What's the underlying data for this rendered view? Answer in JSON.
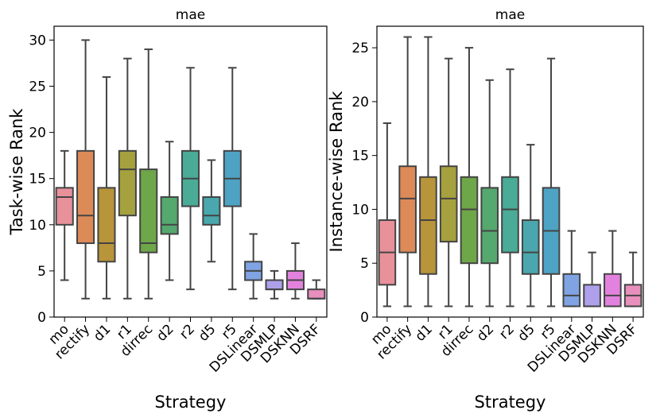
{
  "chart_data": [
    {
      "type": "box",
      "title": "mae",
      "xlabel": "Strategy",
      "ylabel": "Task-wise Rank",
      "ylim": [
        0,
        31.5
      ],
      "yticks": [
        0,
        5,
        10,
        15,
        20,
        25,
        30
      ],
      "categories": [
        "mo",
        "rectify",
        "d1",
        "r1",
        "dirrec",
        "d2",
        "r2",
        "d5",
        "r5",
        "DSLinear",
        "DSMLP",
        "DSKNN",
        "DSRF"
      ],
      "colors": [
        "#e8919b",
        "#dd8a59",
        "#b8943a",
        "#a5a13e",
        "#6ea64a",
        "#55a86e",
        "#4aab97",
        "#4aa7ad",
        "#4ea3c4",
        "#7fa3e3",
        "#aea0ea",
        "#e382de",
        "#e88fbd"
      ],
      "boxes": [
        {
          "whislo": 4,
          "q1": 10,
          "med": 13,
          "q3": 14,
          "whishi": 18
        },
        {
          "whislo": 2,
          "q1": 8,
          "med": 11,
          "q3": 18,
          "whishi": 30
        },
        {
          "whislo": 2,
          "q1": 6,
          "med": 8,
          "q3": 14,
          "whishi": 26
        },
        {
          "whislo": 2,
          "q1": 11,
          "med": 16,
          "q3": 18,
          "whishi": 28
        },
        {
          "whislo": 2,
          "q1": 7,
          "med": 8,
          "q3": 16,
          "whishi": 29
        },
        {
          "whislo": 4,
          "q1": 9,
          "med": 10,
          "q3": 13,
          "whishi": 19
        },
        {
          "whislo": 3,
          "q1": 12,
          "med": 15,
          "q3": 18,
          "whishi": 27
        },
        {
          "whislo": 6,
          "q1": 10,
          "med": 11,
          "q3": 13,
          "whishi": 17
        },
        {
          "whislo": 3,
          "q1": 12,
          "med": 15,
          "q3": 18,
          "whishi": 27
        },
        {
          "whislo": 2,
          "q1": 4,
          "med": 5,
          "q3": 6,
          "whishi": 9
        },
        {
          "whislo": 2,
          "q1": 3,
          "med": 3,
          "q3": 4,
          "whishi": 5
        },
        {
          "whislo": 2,
          "q1": 3,
          "med": 4,
          "q3": 5,
          "whishi": 8
        },
        {
          "whislo": 2,
          "q1": 2,
          "med": 2,
          "q3": 3,
          "whishi": 4
        }
      ]
    },
    {
      "type": "box",
      "title": "mae",
      "xlabel": "Strategy",
      "ylabel": "Instance-wise Rank",
      "ylim": [
        0,
        27
      ],
      "yticks": [
        0,
        5,
        10,
        15,
        20,
        25
      ],
      "categories": [
        "mo",
        "rectify",
        "d1",
        "r1",
        "dirrec",
        "d2",
        "r2",
        "d5",
        "r5",
        "DSLinear",
        "DSMLP",
        "DSKNN",
        "DSRF"
      ],
      "colors": [
        "#e8919b",
        "#dd8a59",
        "#b8943a",
        "#a5a13e",
        "#6ea64a",
        "#55a86e",
        "#4aab97",
        "#4aa7ad",
        "#4ea3c4",
        "#7fa3e3",
        "#aea0ea",
        "#e382de",
        "#e88fbd"
      ],
      "boxes": [
        {
          "whislo": 1,
          "q1": 3,
          "med": 6,
          "q3": 9,
          "whishi": 18
        },
        {
          "whislo": 1,
          "q1": 6,
          "med": 11,
          "q3": 14,
          "whishi": 26
        },
        {
          "whislo": 1,
          "q1": 4,
          "med": 9,
          "q3": 13,
          "whishi": 26
        },
        {
          "whislo": 1,
          "q1": 7,
          "med": 11,
          "q3": 14,
          "whishi": 24
        },
        {
          "whislo": 1,
          "q1": 5,
          "med": 10,
          "q3": 13,
          "whishi": 25
        },
        {
          "whislo": 1,
          "q1": 5,
          "med": 8,
          "q3": 12,
          "whishi": 22
        },
        {
          "whislo": 1,
          "q1": 6,
          "med": 10,
          "q3": 13,
          "whishi": 23
        },
        {
          "whislo": 1,
          "q1": 4,
          "med": 6,
          "q3": 9,
          "whishi": 16
        },
        {
          "whislo": 1,
          "q1": 4,
          "med": 8,
          "q3": 12,
          "whishi": 24
        },
        {
          "whislo": 1,
          "q1": 1,
          "med": 2,
          "q3": 4,
          "whishi": 8
        },
        {
          "whislo": 1,
          "q1": 1,
          "med": 1,
          "q3": 3,
          "whishi": 6
        },
        {
          "whislo": 1,
          "q1": 1,
          "med": 2,
          "q3": 4,
          "whishi": 8
        },
        {
          "whislo": 1,
          "q1": 1,
          "med": 2,
          "q3": 3,
          "whishi": 6
        }
      ]
    }
  ]
}
